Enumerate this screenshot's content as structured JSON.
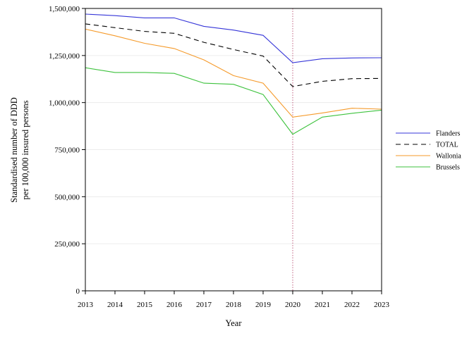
{
  "chart_data": {
    "type": "line",
    "xlabel": "Year",
    "ylabel_lines": [
      "Standardised number of DDD",
      "per 100,000 insured persons"
    ],
    "x": [
      2013,
      2014,
      2015,
      2016,
      2017,
      2018,
      2019,
      2020,
      2021,
      2022,
      2023
    ],
    "x_tick_labels": [
      "2013",
      "2014",
      "2015",
      "2016",
      "2017",
      "2018",
      "2019",
      "2020",
      "2021",
      "2022",
      "2023"
    ],
    "xlim": [
      2013,
      2023
    ],
    "ylim": [
      0,
      1500000
    ],
    "y_ticks": [
      0,
      250000,
      500000,
      750000,
      1000000,
      1250000,
      1500000
    ],
    "y_tick_labels": [
      "0",
      "250,000",
      "500,000",
      "750,000",
      "1,000,000",
      "1,250,000",
      "1,500,000"
    ],
    "grid": "horizontal, light",
    "reference_line": {
      "x": 2020,
      "color": "#c06080",
      "style": "dotted"
    },
    "legend_position": "right",
    "series": [
      {
        "name": "Flanders",
        "color": "#3535d8",
        "dash": "solid",
        "values": [
          1470000,
          1462000,
          1450000,
          1450000,
          1405000,
          1385000,
          1357000,
          1212000,
          1233000,
          1237000,
          1238000
        ]
      },
      {
        "name": "TOTAL",
        "color": "#000000",
        "dash": "dashed",
        "values": [
          1418000,
          1398000,
          1378000,
          1368000,
          1320000,
          1282000,
          1247000,
          1085000,
          1113000,
          1127000,
          1128000
        ]
      },
      {
        "name": "Wallonia",
        "color": "#f59a2a",
        "dash": "solid",
        "values": [
          1390000,
          1355000,
          1315000,
          1287000,
          1227000,
          1143000,
          1103000,
          923000,
          945000,
          970000,
          965000
        ]
      },
      {
        "name": "Brussels",
        "color": "#3dc23d",
        "dash": "solid",
        "values": [
          1185000,
          1160000,
          1160000,
          1155000,
          1103000,
          1097000,
          1043000,
          832000,
          923000,
          943000,
          960000
        ]
      }
    ]
  }
}
